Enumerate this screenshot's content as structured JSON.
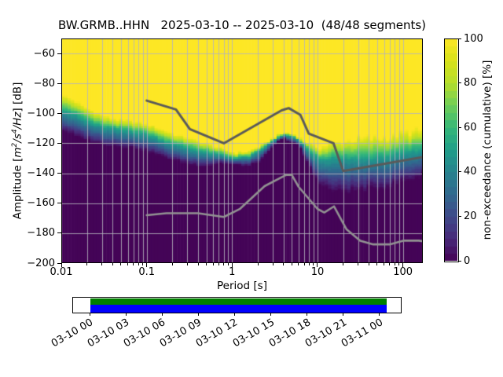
{
  "title": "BW.GRMB..HHN   2025-03-10 -- 2025-03-10  (48/48 segments)",
  "xlabel": "Period [s]",
  "ylabel_parts": {
    "prefix": "Amplitude [",
    "m": "m",
    "m_exp": "2",
    "s": "/s",
    "s_exp": "4",
    "hz": "/Hz",
    "suffix": "] [dB]"
  },
  "colorbar_label": "non-exceedance (cumulative) [%]",
  "colors": {
    "timeline_green": "#008000",
    "timeline_blue": "#0000ff",
    "nhnm_line": "#5a5a5a",
    "nlnm_line": "#929292",
    "grid": "#b4b4bc",
    "tick": "#000000"
  },
  "chart_data": {
    "type": "heatmap",
    "title": "BW.GRMB..HHN   2025-03-10 -- 2025-03-10  (48/48 segments)",
    "station": "BW.GRMB..HHN",
    "date_range": "2025-03-10 -- 2025-03-10",
    "segments": "48/48",
    "xlabel": "Period [s]",
    "ylabel": "Amplitude [m^2/s^4/Hz] [dB]",
    "xscale": "log",
    "xlim": [
      0.01,
      171.2
    ],
    "ylim": [
      -200,
      -50
    ],
    "grid": true,
    "xticks": {
      "values": [
        0.01,
        0.1,
        1,
        10,
        100
      ],
      "labels": [
        "0.01",
        "0.1",
        "1",
        "10",
        "100"
      ]
    },
    "yticks": {
      "values": [
        -60,
        -80,
        -100,
        -120,
        -140,
        -160,
        -180,
        -200
      ],
      "labels": [
        "−60",
        "−80",
        "−100",
        "−120",
        "−140",
        "−160",
        "−180",
        "−200"
      ]
    },
    "colorbar": {
      "label": "non-exceedance (cumulative) [%]",
      "ticks": [
        0,
        20,
        40,
        60,
        80,
        100
      ],
      "range": [
        0,
        100
      ],
      "cmap": "viridis",
      "steps": 30
    },
    "colormap_stops": {
      "positions": [
        0,
        0.1,
        0.2,
        0.3,
        0.4,
        0.5,
        0.6,
        0.7,
        0.8,
        0.9,
        1
      ],
      "colors": [
        "#440154",
        "#482878",
        "#3e4989",
        "#31688e",
        "#26828e",
        "#1f9e89",
        "#35b779",
        "#6ece58",
        "#b5de2b",
        "#d8e219",
        "#fde725"
      ]
    },
    "distribution": {
      "period_bin_octaves": 0.125,
      "periods": [
        0.01,
        0.0145,
        0.021,
        0.031,
        0.047,
        0.07,
        0.1,
        0.15,
        0.22,
        0.33,
        0.5,
        0.75,
        1.1,
        1.6,
        2.1,
        2.7,
        3.4,
        4.2,
        5.2,
        6.2,
        7.5,
        9.0,
        11.5,
        14.5,
        20.0,
        28.0,
        40.0,
        55.0,
        75.0,
        100.0,
        130.0,
        171.0
      ],
      "db_at_100pct": [
        -87.5,
        -92,
        -97.5,
        -102,
        -104.5,
        -105.5,
        -107.5,
        -111,
        -114.5,
        -117,
        -120.5,
        -124,
        -126.8,
        -125.5,
        -122.5,
        -118.5,
        -115,
        -113.3,
        -114.2,
        -116.5,
        -119.5,
        -121.5,
        -122.5,
        -120.5,
        -118.5,
        -117,
        -116.5,
        -116,
        -115.5,
        -113.5,
        -112.5,
        -111.5
      ],
      "db_at_50pct": [
        -98,
        -102,
        -106.5,
        -110,
        -112,
        -113,
        -115,
        -118.5,
        -122,
        -124.5,
        -127,
        -128.5,
        -130.5,
        -129.5,
        -126,
        -121,
        -116.8,
        -115.2,
        -116.5,
        -119.5,
        -124.5,
        -128.5,
        -132,
        -130.5,
        -131,
        -131,
        -130.5,
        -130,
        -129,
        -127.5,
        -126,
        -124.5
      ],
      "db_at_0pct": [
        -112,
        -116,
        -119,
        -122,
        -123,
        -124,
        -126,
        -129.5,
        -132.5,
        -135.5,
        -136,
        -134,
        -135.5,
        -136,
        -133,
        -126.5,
        -119.5,
        -117.6,
        -119.8,
        -123.5,
        -133,
        -142,
        -149,
        -152.5,
        -153.5,
        -152.5,
        -151.5,
        -150.5,
        -149,
        -146.5,
        -144.5,
        -142.5
      ]
    },
    "noise_models": {
      "nhnm": [
        [
          0.1,
          -91.5
        ],
        [
          0.22,
          -97.4
        ],
        [
          0.32,
          -110.5
        ],
        [
          0.8,
          -120.0
        ],
        [
          3.8,
          -98.0
        ],
        [
          4.6,
          -96.5
        ],
        [
          6.3,
          -101.0
        ],
        [
          7.9,
          -113.5
        ],
        [
          15.4,
          -120.0
        ],
        [
          20.0,
          -138.5
        ],
        [
          354.8,
          -126.0
        ]
      ],
      "nlnm": [
        [
          0.1,
          -168.0
        ],
        [
          0.17,
          -166.7
        ],
        [
          0.4,
          -166.7
        ],
        [
          0.8,
          -169.2
        ],
        [
          1.24,
          -163.7
        ],
        [
          2.4,
          -148.6
        ],
        [
          4.3,
          -141.1
        ],
        [
          5.0,
          -141.1
        ],
        [
          6.0,
          -149.0
        ],
        [
          10.0,
          -163.8
        ],
        [
          12.0,
          -166.2
        ],
        [
          15.6,
          -162.1
        ],
        [
          21.9,
          -177.5
        ],
        [
          31.6,
          -185.0
        ],
        [
          45.0,
          -187.5
        ],
        [
          70.0,
          -187.5
        ],
        [
          101.0,
          -185.0
        ],
        [
          154.0,
          -185.0
        ],
        [
          328.0,
          -187.5
        ]
      ]
    },
    "timeline": {
      "tick_labels": [
        "03-10 00",
        "03-10 03",
        "03-10 06",
        "03-10 09",
        "03-10 12",
        "03-10 15",
        "03-10 18",
        "03-10 21",
        "03-11 00"
      ]
    }
  }
}
